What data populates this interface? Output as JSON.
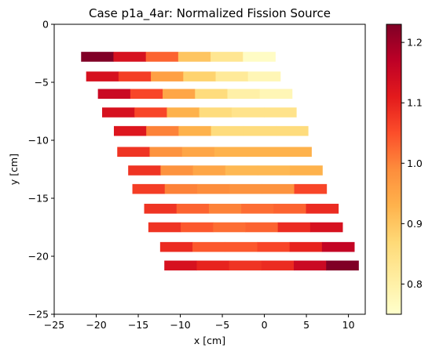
{
  "chart_data": {
    "type": "heatmap",
    "title": "Case p1a_4ar: Normalized Fission Source",
    "xlabel": "x [cm]",
    "ylabel": "y [cm]",
    "xlim": [
      -25,
      12
    ],
    "ylim": [
      -25,
      0
    ],
    "x_ticks": [
      -25,
      -20,
      -15,
      -10,
      -5,
      0,
      5,
      10
    ],
    "x_tick_labels": [
      "−25",
      "−20",
      "−15",
      "−10",
      "−5",
      "0",
      "5",
      "10"
    ],
    "y_ticks": [
      0,
      -5,
      -10,
      -15,
      -20,
      -25
    ],
    "y_tick_labels": [
      "0",
      "−5",
      "−10",
      "−15",
      "−20",
      "−25"
    ],
    "colorbar": {
      "colormap": "YlOrRd",
      "range": [
        0.75,
        1.23
      ],
      "ticks": [
        0.8,
        0.9,
        1.0,
        1.1,
        1.2
      ],
      "tick_labels": [
        "0.8",
        "0.9",
        "1.0",
        "1.1",
        "1.2"
      ]
    },
    "bar_height_cm": 0.85,
    "grid": false,
    "rows": [
      {
        "y": -2.8,
        "x_start": -21.8,
        "cell_width": 3.85,
        "values": [
          1.23,
          1.13,
          1.03,
          0.9,
          0.83,
          0.76
        ]
      },
      {
        "y": -4.5,
        "x_start": -21.2,
        "cell_width": 3.85,
        "values": [
          1.13,
          1.07,
          0.96,
          0.88,
          0.82,
          0.78
        ]
      },
      {
        "y": -6.0,
        "x_start": -19.8,
        "cell_width": 3.85,
        "values": [
          1.15,
          1.06,
          0.95,
          0.86,
          0.8,
          0.78
        ]
      },
      {
        "y": -7.6,
        "x_start": -19.3,
        "cell_width": 3.85,
        "values": [
          1.13,
          1.06,
          0.93,
          0.86,
          0.84,
          0.84
        ]
      },
      {
        "y": -9.2,
        "x_start": -17.9,
        "cell_width": 3.85,
        "values": [
          1.12,
          1.0,
          0.93,
          0.86,
          0.86,
          0.86
        ]
      },
      {
        "y": -11.0,
        "x_start": -17.5,
        "cell_width": 3.85,
        "values": [
          1.08,
          0.98,
          0.95,
          0.93,
          0.93,
          0.93
        ]
      },
      {
        "y": -12.6,
        "x_start": -16.2,
        "cell_width": 3.85,
        "values": [
          1.08,
          0.98,
          0.95,
          0.92,
          0.92,
          0.93
        ]
      },
      {
        "y": -14.2,
        "x_start": -15.7,
        "cell_width": 3.85,
        "values": [
          1.07,
          1.0,
          0.99,
          0.98,
          0.98,
          1.06
        ]
      },
      {
        "y": -15.9,
        "x_start": -14.3,
        "cell_width": 3.85,
        "values": [
          1.08,
          1.03,
          1.0,
          1.02,
          1.03,
          1.09
        ]
      },
      {
        "y": -17.5,
        "x_start": -13.8,
        "cell_width": 3.85,
        "values": [
          1.08,
          1.04,
          1.02,
          1.03,
          1.09,
          1.13
        ]
      },
      {
        "y": -19.2,
        "x_start": -12.4,
        "cell_width": 3.85,
        "values": [
          1.09,
          1.04,
          1.04,
          1.06,
          1.1,
          1.16
        ]
      },
      {
        "y": -20.8,
        "x_start": -11.9,
        "cell_width": 3.85,
        "values": [
          1.13,
          1.1,
          1.08,
          1.09,
          1.15,
          1.23
        ]
      }
    ]
  }
}
